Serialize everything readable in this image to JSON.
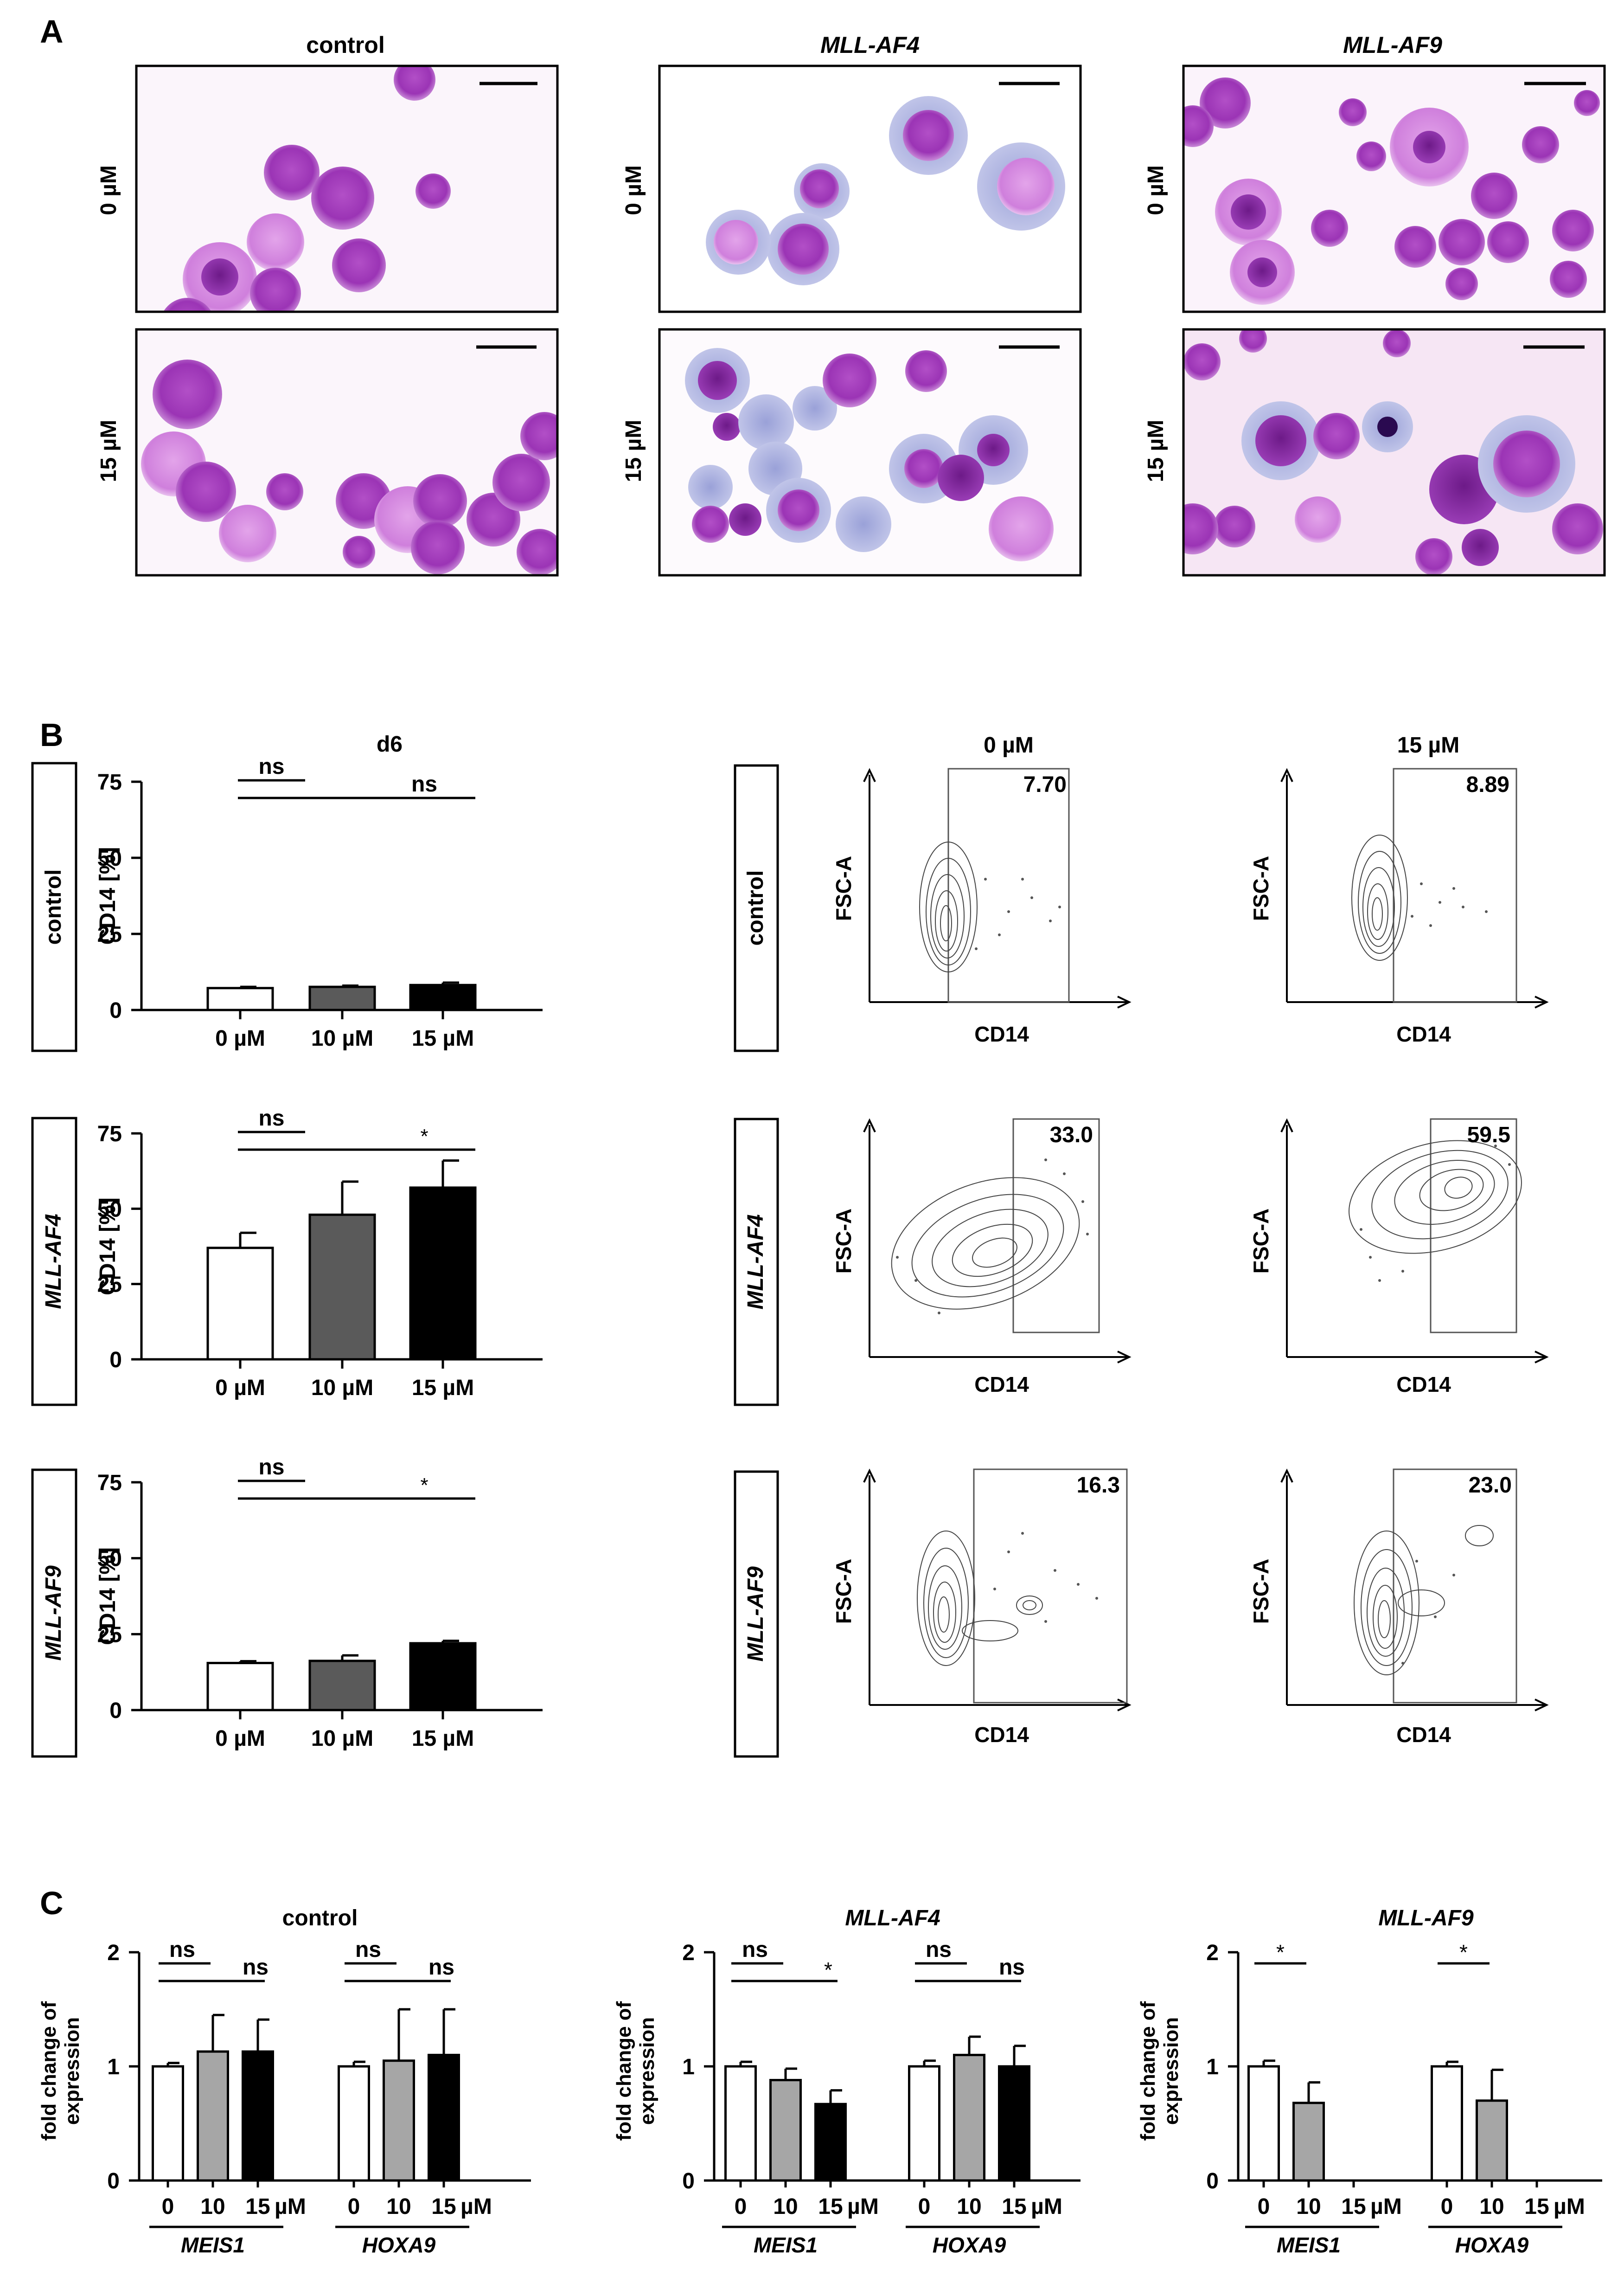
{
  "panel_labels": {
    "a": "A",
    "b": "B",
    "c": "C"
  },
  "panel_a": {
    "columns": [
      "control",
      "MLL-AF4",
      "MLL-AF9"
    ],
    "rows": [
      "0 µM",
      "15 µM"
    ],
    "image_descriptions": "Wright-Giemsa stained cytospin micrographs with scale bars"
  },
  "panel_b": {
    "bar_title": "d6",
    "row_labels": [
      "control",
      "MLL-AF4",
      "MLL-AF9"
    ],
    "flow_col_titles": [
      "0 µM",
      "15 µM"
    ],
    "flow_xlabel": "CD14",
    "flow_ylabel": "FSC-A",
    "flow_gate_values": [
      [
        "7.70",
        "8.89"
      ],
      [
        "33.0",
        "59.5"
      ],
      [
        "16.3",
        "23.0"
      ]
    ]
  },
  "panel_c": {
    "titles": [
      "control",
      "MLL-AF4",
      "MLL-AF9"
    ],
    "gene_labels": [
      "MEIS1",
      "HOXA9"
    ],
    "conc_ticks": [
      "0",
      "10",
      "15"
    ],
    "unit": "µM"
  },
  "chart_data": [
    {
      "id": "b-control",
      "type": "bar",
      "title": "d6",
      "ylabel": "CD14 [%]",
      "ylim": [
        0,
        75
      ],
      "yticks": [
        "0",
        "25",
        "50",
        "75"
      ],
      "categories": [
        "0 µM",
        "10 µM",
        "15 µM"
      ],
      "values": [
        7.2,
        7.6,
        8.2
      ],
      "errors": [
        0.4,
        0.4,
        0.8
      ],
      "colors": [
        "#ffffff",
        "#5a5a5a",
        "#000000"
      ],
      "significance": [
        {
          "from": 0,
          "to": 1,
          "label": "ns"
        },
        {
          "from": 0,
          "to": 2,
          "label": "ns"
        }
      ]
    },
    {
      "id": "b-mllaf4",
      "type": "bar",
      "ylabel": "CD14 [%]",
      "ylim": [
        0,
        75
      ],
      "yticks": [
        "0",
        "25",
        "50",
        "75"
      ],
      "categories": [
        "0 µM",
        "10 µM",
        "15 µM"
      ],
      "values": [
        37,
        48,
        57
      ],
      "errors": [
        5,
        11,
        9
      ],
      "colors": [
        "#ffffff",
        "#5a5a5a",
        "#000000"
      ],
      "significance": [
        {
          "from": 0,
          "to": 1,
          "label": "ns"
        },
        {
          "from": 0,
          "to": 2,
          "label": "*"
        }
      ]
    },
    {
      "id": "b-mllaf9",
      "type": "bar",
      "ylabel": "CD14 [%]",
      "ylim": [
        0,
        75
      ],
      "yticks": [
        "0",
        "25",
        "50",
        "75"
      ],
      "categories": [
        "0 µM",
        "10 µM",
        "15 µM"
      ],
      "values": [
        15.5,
        16.2,
        22
      ],
      "errors": [
        0.6,
        1.8,
        0.8
      ],
      "colors": [
        "#ffffff",
        "#5a5a5a",
        "#000000"
      ],
      "significance": [
        {
          "from": 0,
          "to": 1,
          "label": "ns"
        },
        {
          "from": 0,
          "to": 2,
          "label": "*"
        }
      ]
    },
    {
      "id": "c-control",
      "type": "bar",
      "title": "control",
      "ylabel": "fold change of expression",
      "ylim": [
        0,
        2
      ],
      "yticks": [
        "0",
        "1",
        "2"
      ],
      "groups": [
        "MEIS1",
        "HOXA9"
      ],
      "categories": [
        "0",
        "10",
        "15"
      ],
      "unit": "µM",
      "values": [
        [
          1.0,
          1.13,
          1.13
        ],
        [
          1.0,
          1.05,
          1.1
        ]
      ],
      "errors": [
        [
          0.03,
          0.32,
          0.28
        ],
        [
          0.04,
          0.45,
          0.4
        ]
      ],
      "colors": [
        "#ffffff",
        "#a6a6a6",
        "#000000"
      ],
      "significance": [
        [
          {
            "from": 0,
            "to": 1,
            "label": "ns"
          },
          {
            "from": 0,
            "to": 2,
            "label": "ns"
          }
        ],
        [
          {
            "from": 0,
            "to": 1,
            "label": "ns"
          },
          {
            "from": 0,
            "to": 2,
            "label": "ns"
          }
        ]
      ]
    },
    {
      "id": "c-mllaf4",
      "type": "bar",
      "title": "MLL-AF4",
      "ylabel": "fold change of expression",
      "ylim": [
        0,
        2
      ],
      "yticks": [
        "0",
        "1",
        "2"
      ],
      "groups": [
        "MEIS1",
        "HOXA9"
      ],
      "categories": [
        "0",
        "10",
        "15"
      ],
      "unit": "µM",
      "values": [
        [
          1.0,
          0.88,
          0.67
        ],
        [
          1.0,
          1.1,
          1.0
        ]
      ],
      "errors": [
        [
          0.04,
          0.1,
          0.12
        ],
        [
          0.05,
          0.16,
          0.18
        ]
      ],
      "colors": [
        "#ffffff",
        "#a6a6a6",
        "#000000"
      ],
      "significance": [
        [
          {
            "from": 0,
            "to": 1,
            "label": "ns"
          },
          {
            "from": 0,
            "to": 2,
            "label": "*"
          }
        ],
        [
          {
            "from": 0,
            "to": 1,
            "label": "ns"
          },
          {
            "from": 0,
            "to": 2,
            "label": "ns"
          }
        ]
      ]
    },
    {
      "id": "c-mllaf9",
      "type": "bar",
      "title": "MLL-AF9",
      "ylabel": "fold change of expression",
      "ylim": [
        0,
        2
      ],
      "yticks": [
        "0",
        "1",
        "2"
      ],
      "groups": [
        "MEIS1",
        "HOXA9"
      ],
      "categories": [
        "0",
        "10",
        "15"
      ],
      "unit": "µM",
      "values": [
        [
          1.0,
          0.68,
          null
        ],
        [
          1.0,
          0.7,
          null
        ]
      ],
      "errors": [
        [
          0.05,
          0.18,
          null
        ],
        [
          0.04,
          0.27,
          null
        ]
      ],
      "colors": [
        "#ffffff",
        "#a6a6a6",
        "#000000"
      ],
      "significance": [
        [
          {
            "from": 0,
            "to": 1,
            "label": "*"
          }
        ],
        [
          {
            "from": 0,
            "to": 1,
            "label": "*"
          }
        ]
      ]
    }
  ]
}
